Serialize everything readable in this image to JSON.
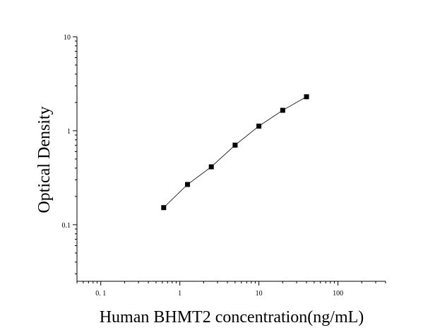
{
  "chart_data": {
    "type": "scatter",
    "title": "",
    "xlabel": "Human BHMT2 concentration(ng/mL)",
    "ylabel": "Optical Density",
    "x_scale": "log",
    "y_scale": "log",
    "xlim": [
      0.05,
      400
    ],
    "ylim": [
      0.025,
      10
    ],
    "x_ticks": [
      {
        "value": 0.1,
        "label": "0. 1"
      },
      {
        "value": 1,
        "label": "1"
      },
      {
        "value": 10,
        "label": "10"
      },
      {
        "value": 100,
        "label": "100"
      }
    ],
    "y_ticks": [
      {
        "value": 0.1,
        "label": "0.1"
      },
      {
        "value": 1,
        "label": "1"
      },
      {
        "value": 10,
        "label": "10"
      }
    ],
    "grid": false,
    "legend": "none",
    "series": [
      {
        "x": [
          0.625,
          1.25,
          2.5,
          5,
          10,
          20,
          40
        ],
        "y": [
          0.152,
          0.268,
          0.413,
          0.703,
          1.12,
          1.65,
          2.3
        ]
      }
    ],
    "marker_color": "#000000",
    "line_color": "#000000"
  }
}
